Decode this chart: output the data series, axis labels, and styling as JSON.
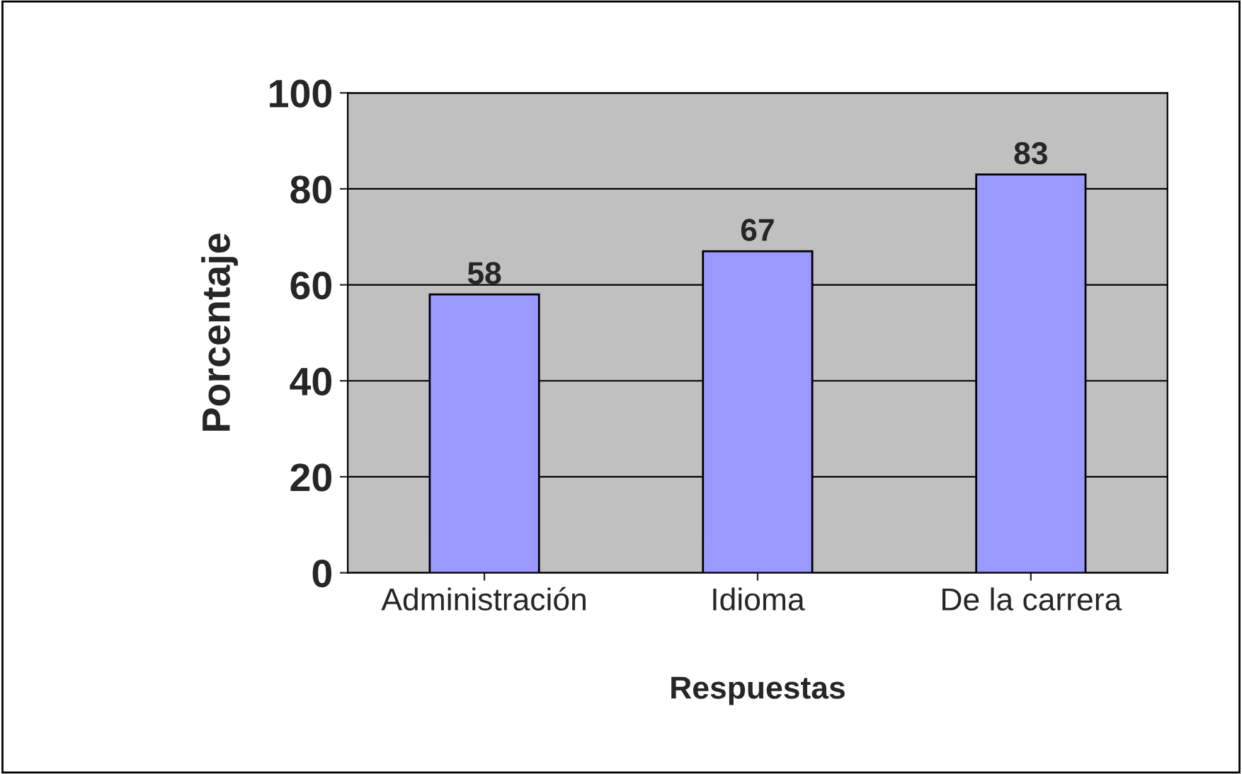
{
  "chart_data": {
    "type": "bar",
    "xlabel": "Respuestas",
    "ylabel": "Porcentaje",
    "categories": [
      "Administración",
      "Idioma",
      "De la carrera"
    ],
    "values": [
      58,
      67,
      83
    ],
    "color": "#9999ff",
    "ylim": [
      0,
      100
    ],
    "yticks": [
      0,
      20,
      40,
      60,
      80,
      100
    ],
    "grid": "y",
    "data_labels": true
  }
}
